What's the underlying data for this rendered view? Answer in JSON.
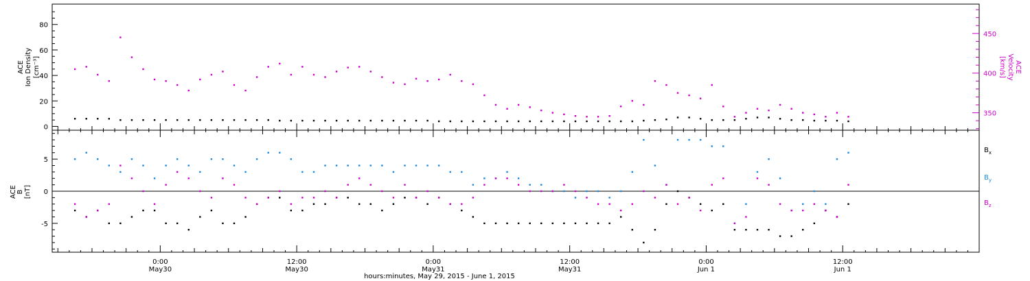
{
  "chart_data": [
    {
      "type": "scatter",
      "panel": "top",
      "left_axis_label": [
        "ACE",
        "Ion Density",
        "[cm⁻³]"
      ],
      "right_axis_label": [
        "ACE",
        "Velocity",
        "[km/s]"
      ],
      "left_ylim": [
        -3,
        96
      ],
      "right_ylim": [
        328,
        487
      ],
      "left_ticks": [
        0,
        20,
        40,
        60,
        80
      ],
      "right_ticks": [
        350,
        400,
        450
      ],
      "colors": {
        "density": "#000000",
        "velocity": "#cc00cc"
      },
      "series": [
        {
          "axis": "left",
          "color": "#000000",
          "x": [
            -7.5,
            -6.5,
            -5.5,
            -4.5,
            -3.5,
            -2.5,
            -1.5,
            -0.5,
            0.5,
            1.5,
            2.5,
            3.5,
            4.5,
            5.5,
            6.5,
            7.5,
            8.5,
            9.5,
            10.5,
            11.5,
            12.5,
            13.5,
            14.5,
            15.5,
            16.5,
            17.5,
            18.5,
            19.5,
            20.5,
            21.5,
            22.5,
            23.5,
            24.5,
            25.5,
            26.5,
            27.5,
            28.5,
            29.5,
            30.5,
            31.5,
            32.5,
            33.5,
            34.5,
            35.5,
            36.5,
            37.5,
            38.5,
            39.5,
            40.5,
            41.5,
            42.5,
            43.5,
            44.5,
            45.5,
            46.5,
            47.5,
            48.5,
            49.5,
            50.5,
            51.5,
            52.5,
            53.5,
            54.5,
            55.5,
            56.5,
            57.5,
            58.5,
            59.5,
            60.5
          ],
          "y": [
            6,
            6,
            6,
            6,
            5,
            5,
            5,
            5,
            5,
            5,
            5,
            5,
            5,
            5,
            5,
            5,
            5,
            5,
            4.5,
            4.5,
            4.5,
            4.5,
            4.5,
            4.5,
            4.5,
            4.5,
            4.5,
            4.5,
            4.5,
            4.5,
            4.5,
            4.5,
            4,
            4,
            4,
            4,
            4,
            4,
            4,
            4,
            4,
            4,
            4,
            4,
            4,
            4,
            4,
            4,
            4,
            4,
            4.5,
            5,
            5.5,
            7,
            7,
            6,
            5,
            5,
            5,
            6,
            7,
            7,
            6,
            5,
            5,
            4.5,
            4.5,
            4.5,
            4
          ]
        },
        {
          "axis": "right",
          "color": "#cc00cc",
          "x": [
            -7.5,
            -6.5,
            -5.5,
            -4.5,
            -3.5,
            -2.5,
            -1.5,
            -0.5,
            0.5,
            1.5,
            2.5,
            3.5,
            4.5,
            5.5,
            6.5,
            7.5,
            8.5,
            9.5,
            10.5,
            11.5,
            12.5,
            13.5,
            14.5,
            15.5,
            16.5,
            17.5,
            18.5,
            19.5,
            20.5,
            21.5,
            22.5,
            23.5,
            24.5,
            25.5,
            26.5,
            27.5,
            28.5,
            29.5,
            30.5,
            31.5,
            32.5,
            33.5,
            34.5,
            35.5,
            36.5,
            37.5,
            38.5,
            39.5,
            40.5,
            41.5,
            42.5,
            43.5,
            44.5,
            45.5,
            46.5,
            47.5,
            48.5,
            49.5,
            50.5,
            51.5,
            52.5,
            53.5,
            54.5,
            55.5,
            56.5,
            57.5,
            58.5,
            59.5,
            60.5
          ],
          "y": [
            405,
            408,
            398,
            390,
            445,
            420,
            405,
            392,
            390,
            385,
            378,
            392,
            398,
            402,
            385,
            378,
            395,
            408,
            412,
            398,
            408,
            398,
            395,
            402,
            407,
            408,
            402,
            395,
            388,
            386,
            393,
            390,
            392,
            398,
            390,
            386,
            372,
            360,
            355,
            360,
            357,
            353,
            350,
            348,
            346,
            345,
            345,
            346,
            358,
            365,
            360,
            390,
            385,
            375,
            372,
            368,
            385,
            358,
            345,
            350,
            355,
            353,
            360,
            355,
            350,
            348,
            345,
            350,
            345
          ]
        }
      ]
    },
    {
      "type": "scatter",
      "panel": "bottom",
      "left_axis_label": [
        "ACE",
        "B",
        "[nT]"
      ],
      "ylim": [
        -9.5,
        9.5
      ],
      "yticks": [
        -5,
        0,
        5
      ],
      "legend": {
        "placement": "right",
        "items": [
          {
            "main": "B",
            "sub": "x",
            "color": "#000000"
          },
          {
            "main": "B",
            "sub": "y",
            "color": "#1a88dd"
          },
          {
            "main": "B",
            "sub": "z",
            "color": "#cc00cc"
          }
        ]
      },
      "series": [
        {
          "color": "#000000",
          "x": [
            -7.5,
            -6.5,
            -5.5,
            -4.5,
            -3.5,
            -2.5,
            -1.5,
            -0.5,
            0.5,
            1.5,
            2.5,
            3.5,
            4.5,
            5.5,
            6.5,
            7.5,
            8.5,
            9.5,
            10.5,
            11.5,
            12.5,
            13.5,
            14.5,
            15.5,
            16.5,
            17.5,
            18.5,
            19.5,
            20.5,
            21.5,
            22.5,
            23.5,
            24.5,
            25.5,
            26.5,
            27.5,
            28.5,
            29.5,
            30.5,
            31.5,
            32.5,
            33.5,
            34.5,
            35.5,
            36.5,
            37.5,
            38.5,
            39.5,
            40.5,
            41.5,
            42.5,
            43.5,
            44.5,
            45.5,
            46.5,
            47.5,
            48.5,
            49.5,
            50.5,
            51.5,
            52.5,
            53.5,
            54.5,
            55.5,
            56.5,
            57.5,
            58.5,
            59.5,
            60.5
          ],
          "y": [
            -3,
            -4,
            -3,
            -5,
            -5,
            -4,
            -3,
            -3,
            -5,
            -5,
            -6,
            -4,
            -3,
            -5,
            -5,
            -4,
            -2,
            -1,
            -1,
            -3,
            -3,
            -2,
            -2,
            -1,
            -1,
            -2,
            -2,
            -3,
            -2,
            -1,
            -1,
            -2,
            -1,
            -2,
            -3,
            -4,
            -5,
            -5,
            -5,
            -5,
            -5,
            -5,
            -5,
            -5,
            -5,
            -5,
            -5,
            -5,
            -4,
            -6,
            -8,
            -6,
            -2,
            0,
            -1,
            -2,
            -3,
            -2,
            -6,
            -6,
            -6,
            -6,
            -7,
            -7,
            -6,
            -5,
            -3,
            -4,
            -2
          ]
        },
        {
          "color": "#1a88dd",
          "x": [
            -7.5,
            -6.5,
            -5.5,
            -4.5,
            -3.5,
            -2.5,
            -1.5,
            -0.5,
            0.5,
            1.5,
            2.5,
            3.5,
            4.5,
            5.5,
            6.5,
            7.5,
            8.5,
            9.5,
            10.5,
            11.5,
            12.5,
            13.5,
            14.5,
            15.5,
            16.5,
            17.5,
            18.5,
            19.5,
            20.5,
            21.5,
            22.5,
            23.5,
            24.5,
            25.5,
            26.5,
            27.5,
            28.5,
            29.5,
            30.5,
            31.5,
            32.5,
            33.5,
            34.5,
            35.5,
            36.5,
            37.5,
            38.5,
            39.5,
            40.5,
            41.5,
            42.5,
            43.5,
            44.5,
            45.5,
            46.5,
            47.5,
            48.5,
            49.5,
            50.5,
            51.5,
            52.5,
            53.5,
            54.5,
            55.5,
            56.5,
            57.5,
            58.5,
            59.5,
            60.5
          ],
          "y": [
            5,
            6,
            5,
            4,
            3,
            5,
            4,
            2,
            4,
            5,
            4,
            3,
            5,
            5,
            4,
            3,
            5,
            6,
            6,
            5,
            3,
            3,
            4,
            4,
            4,
            4,
            4,
            4,
            3,
            4,
            4,
            4,
            4,
            3,
            3,
            1,
            2,
            2,
            3,
            2,
            1,
            1,
            0,
            0,
            -1,
            0,
            0,
            -1,
            0,
            3,
            8,
            4,
            1,
            8,
            8,
            8,
            7,
            7,
            -5,
            -2,
            3,
            5,
            2,
            -3,
            -2,
            0,
            -2,
            5,
            6
          ]
        },
        {
          "color": "#cc00cc",
          "x": [
            -7.5,
            -6.5,
            -5.5,
            -4.5,
            -3.5,
            -2.5,
            -1.5,
            -0.5,
            0.5,
            1.5,
            2.5,
            3.5,
            4.5,
            5.5,
            6.5,
            7.5,
            8.5,
            9.5,
            10.5,
            11.5,
            12.5,
            13.5,
            14.5,
            15.5,
            16.5,
            17.5,
            18.5,
            19.5,
            20.5,
            21.5,
            22.5,
            23.5,
            24.5,
            25.5,
            26.5,
            27.5,
            28.5,
            29.5,
            30.5,
            31.5,
            32.5,
            33.5,
            34.5,
            35.5,
            36.5,
            37.5,
            38.5,
            39.5,
            40.5,
            41.5,
            42.5,
            43.5,
            44.5,
            45.5,
            46.5,
            47.5,
            48.5,
            49.5,
            50.5,
            51.5,
            52.5,
            53.5,
            54.5,
            55.5,
            56.5,
            57.5,
            58.5,
            59.5,
            60.5
          ],
          "y": [
            -2,
            -4,
            -3,
            -2,
            4,
            2,
            0,
            -2,
            1,
            3,
            2,
            0,
            -1,
            2,
            1,
            -1,
            -2,
            -1,
            0,
            -2,
            -1,
            -1,
            0,
            -1,
            1,
            2,
            1,
            0,
            -1,
            1,
            -1,
            0,
            -1,
            -2,
            -2,
            -1,
            1,
            2,
            2,
            1,
            0,
            0,
            0,
            1,
            0,
            -1,
            -2,
            -2,
            -3,
            -2,
            0,
            -1,
            1,
            -2,
            -1,
            -3,
            1,
            2,
            -5,
            -4,
            2,
            1,
            -2,
            -3,
            -3,
            -2,
            -3,
            -4,
            1
          ]
        }
      ]
    }
  ],
  "x_axis": {
    "range": [
      -9.5,
      72
    ],
    "major_ticks": [
      0,
      12,
      24,
      36,
      48,
      60
    ],
    "tick_labels": [
      "0:00",
      "12:00",
      "0:00",
      "12:00",
      "0:00",
      "12:00"
    ],
    "date_labels": [
      "May30",
      "May30",
      "May31",
      "May31",
      "Jun 1",
      "Jun 1"
    ],
    "title": "hours:minutes, May 29, 2015 - June  1, 2015"
  }
}
